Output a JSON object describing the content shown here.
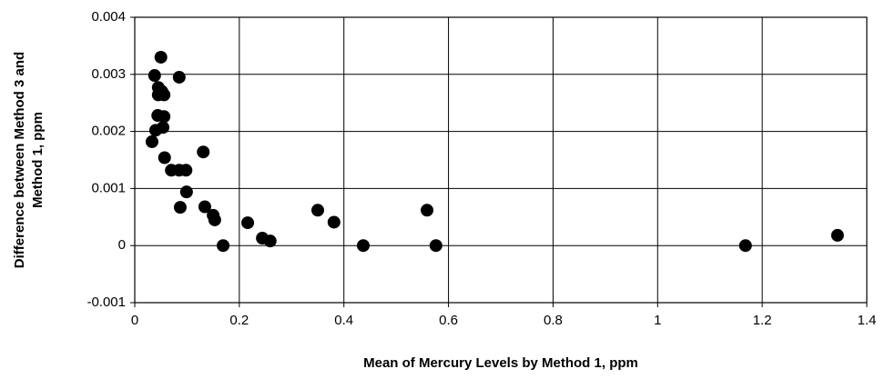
{
  "chart_data": {
    "type": "scatter",
    "xlabel": "Mean of Mercury Levels by Method 1, ppm",
    "ylabel": [
      "Difference between Method 3 and",
      "Method 1, ppm"
    ],
    "x": [
      0.033,
      0.038,
      0.04,
      0.045,
      0.045,
      0.05,
      0.044,
      0.052,
      0.054,
      0.056,
      0.056,
      0.057,
      0.07,
      0.085,
      0.098,
      0.085,
      0.087,
      0.099,
      0.131,
      0.134,
      0.15,
      0.153,
      0.169,
      0.216,
      0.244,
      0.259,
      0.35,
      0.381,
      0.437,
      0.559,
      0.576,
      1.168,
      1.344
    ],
    "values": [
      0.00182,
      0.00298,
      0.00202,
      0.00264,
      0.00277,
      0.0033,
      0.00228,
      0.0027,
      0.00207,
      0.00264,
      0.00226,
      0.00154,
      0.00132,
      0.00132,
      0.00132,
      0.00295,
      0.00067,
      0.00094,
      0.00164,
      0.00068,
      0.00053,
      0.00045,
      0,
      0.0004,
      0.00013,
      8e-05,
      0.00062,
      0.00041,
      0,
      0.00062,
      0,
      0,
      0.00018
    ],
    "color": "#000000",
    "xlim": [
      0,
      1.4
    ],
    "xticks": [
      0,
      0.2,
      0.4,
      0.6,
      0.8,
      1,
      1.2,
      1.4
    ],
    "ylim": [
      -0.001,
      0.004
    ],
    "yticks": [
      -0.001,
      0,
      0.001,
      0.002,
      0.003,
      0.004
    ],
    "grid": true
  }
}
